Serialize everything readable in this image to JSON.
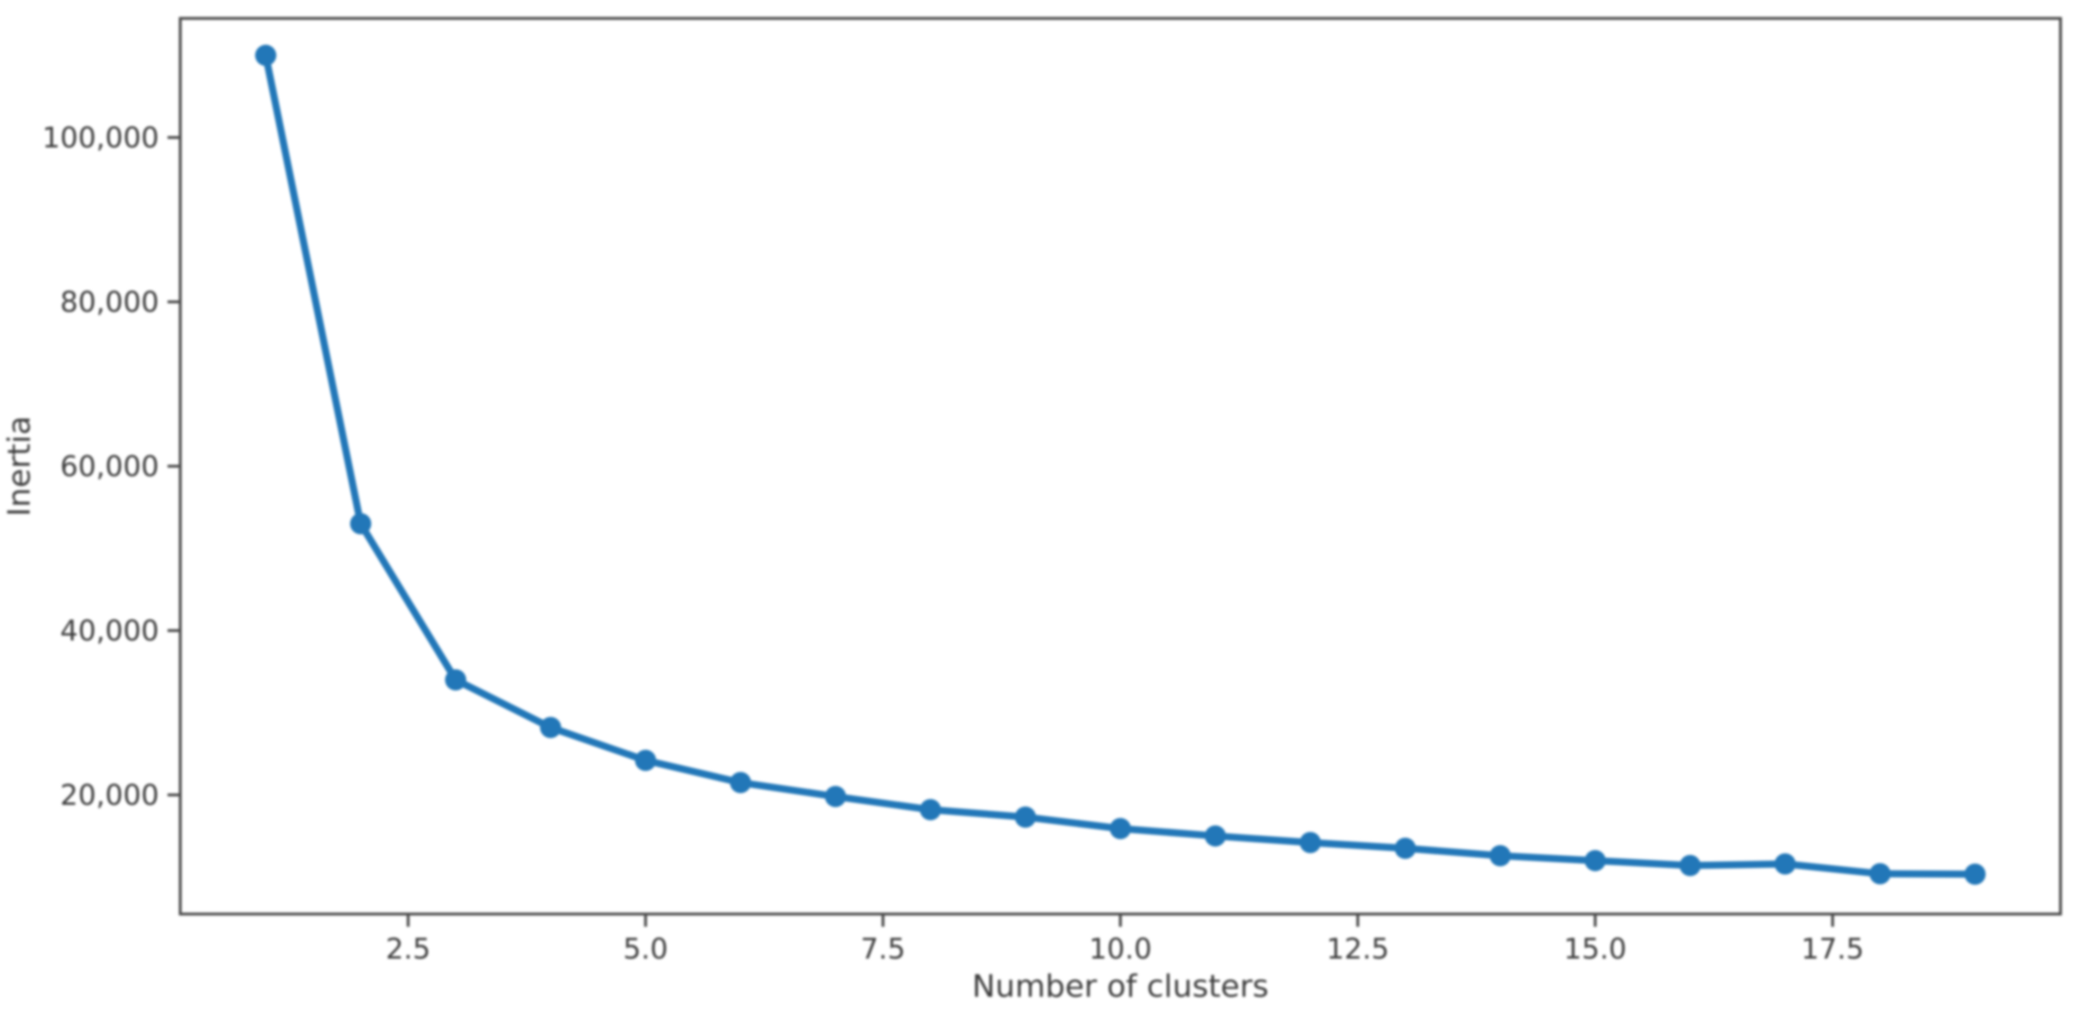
{
  "chart_data": {
    "type": "line",
    "title": "",
    "xlabel": "Number of clusters",
    "ylabel": "Inertia",
    "x": [
      1,
      2,
      3,
      4,
      5,
      6,
      7,
      8,
      9,
      10,
      11,
      12,
      13,
      14,
      15,
      16,
      17,
      18,
      19
    ],
    "series": [
      {
        "name": "inertia",
        "values": [
          110000,
          53000,
          34000,
          28200,
          24200,
          21500,
          19800,
          18200,
          17300,
          15900,
          15000,
          14200,
          13500,
          12600,
          12000,
          11400,
          11600,
          10400,
          10350
        ]
      }
    ],
    "xlim": [
      0.1,
      19.9
    ],
    "ylim": [
      5500,
      114500
    ],
    "x_tick_values": [
      2.5,
      5,
      7.5,
      10,
      12.5,
      15,
      17.5
    ],
    "x_tick_labels": [
      "2.5",
      "5.0",
      "7.5",
      "10.0",
      "12.5",
      "15.0",
      "17.5"
    ],
    "y_tick_values": [
      20000,
      40000,
      60000,
      80000,
      100000
    ],
    "y_tick_labels": [
      "20,000",
      "40,000",
      "60,000",
      "80,000",
      "100,000"
    ],
    "grid": false,
    "legend_position": "none",
    "marker": "o",
    "line_color": "#2277b8",
    "marker_color": "#2277b8",
    "spine_color": "#4a4a4a",
    "text_color": "#3d3d3d",
    "background_color": "#ffffff"
  }
}
